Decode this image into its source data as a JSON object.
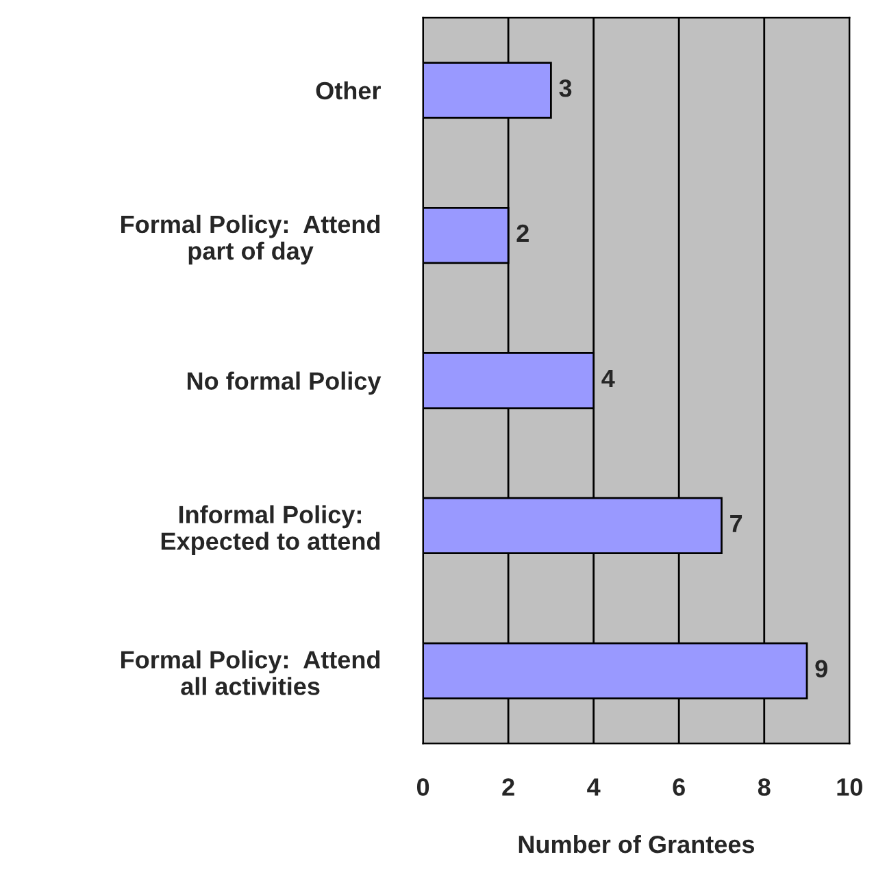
{
  "chart_data": {
    "type": "bar",
    "orientation": "horizontal",
    "xlabel": "Number of Grantees",
    "categories": [
      "Other",
      "Formal Policy:  Attend\npart of day",
      "No formal Policy",
      "Informal Policy:\nExpected to attend",
      "Formal Policy:  Attend\nall activities"
    ],
    "values": [
      3,
      2,
      4,
      7,
      9
    ],
    "color": "#9999ff",
    "xlim": [
      0,
      10
    ],
    "xticks": [
      0,
      2,
      4,
      6,
      8,
      10
    ],
    "grid": "x",
    "data_labels": true
  }
}
